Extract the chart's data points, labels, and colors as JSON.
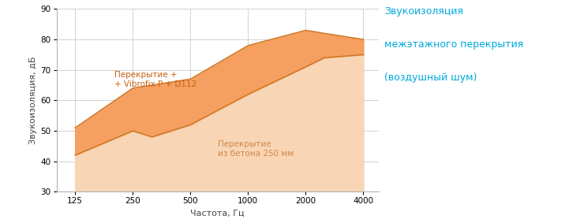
{
  "x_values": [
    125,
    250,
    315,
    500,
    1000,
    2000,
    2500,
    4000
  ],
  "y_lower": [
    42,
    50,
    48,
    52,
    62,
    71,
    74,
    75
  ],
  "y_upper": [
    51,
    64,
    65,
    67,
    78,
    83,
    82,
    80
  ],
  "x_ticks": [
    125,
    250,
    500,
    1000,
    2000,
    4000
  ],
  "ylim": [
    30,
    90
  ],
  "xlabel": "Частота, Гц",
  "ylabel": "Звукоизоляция, дБ",
  "label_lower": "Перекрытие\nиз бетона 250 мм",
  "label_upper": "Перекрытие +\n+ Vibrofix P + D112",
  "title_line1": "Звукоизоляция",
  "title_line2": "межэтажного перекрытия",
  "title_line3": "(воздушный шум)",
  "color_upper_fill": "#f5a060",
  "color_lower_fill": "#f8d5b5",
  "color_upper_line": "#c87828",
  "color_lower_line": "#c87828",
  "title_color": "#00aadd",
  "label_color_lower": "#d08848",
  "label_color_upper": "#c86010",
  "bg_color": "#ffffff",
  "grid_color": "#cccccc"
}
